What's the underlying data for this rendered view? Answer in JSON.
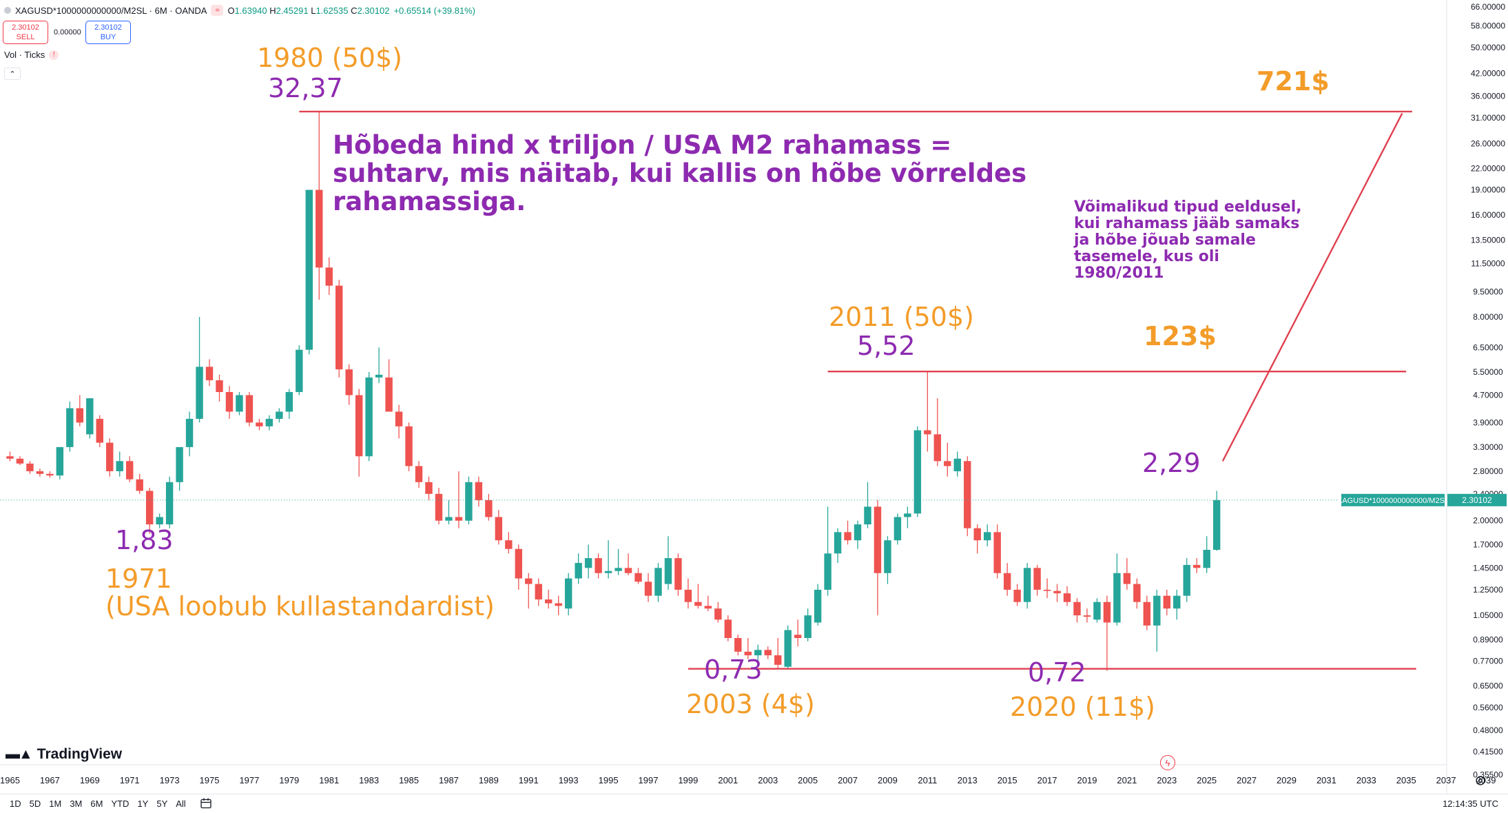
{
  "header": {
    "symbol_line": "XAGUSD*1000000000000/M2SL · 6M · OANDA",
    "o_label": "O",
    "o_value": "1.63940",
    "h_label": "H",
    "h_value": "2.45291",
    "l_label": "L",
    "l_value": "1.62535",
    "c_label": "C",
    "c_value": "2.30102",
    "change": "+0.65514 (+39.81%)"
  },
  "trade": {
    "sell_price": "2.30102",
    "sell_label": "SELL",
    "spread": "0.00000",
    "buy_price": "2.30102",
    "buy_label": "BUY"
  },
  "indicator": {
    "label": "Vol · Ticks"
  },
  "annotations": {
    "a1980_title": "1980 (50$)",
    "a1980_value": "32,37",
    "a1971_value": "1,83",
    "a1971_year": "1971",
    "a1971_note": "(USA loobub kullastandardist)",
    "a2011_title": "2011 (50$)",
    "a2011_value": "5,52",
    "a2003_value": "0,73",
    "a2003_title": "2003 (4$)",
    "a2020_value": "0,72",
    "a2020_title": "2020 (11$)",
    "current_value": "2,29",
    "target_high": "721$",
    "target_mid": "123$",
    "main_text_1": "Hõbeda hind x triljon / USA M2 rahamass =",
    "main_text_2": "suhtarv, mis näitab, kui kallis on hõbe võrreldes",
    "main_text_3": "rahamassiga.",
    "side_text_1": "Võimalikud tipud eeldusel,",
    "side_text_2": "kui rahamass jääb samaks",
    "side_text_3": "ja hõbe jõuab samale",
    "side_text_4": "tasemele, kus oli",
    "side_text_5": "1980/2011"
  },
  "price_label": {
    "symbol": "XAGUSD*1000000000000/M2SL",
    "value": "2.30102"
  },
  "logo": "TradingView",
  "bottom": {
    "ranges": [
      "1D",
      "5D",
      "1M",
      "3M",
      "6M",
      "YTD",
      "1Y",
      "5Y",
      "All"
    ],
    "clock": "12:14:35 UTC"
  },
  "colors": {
    "up": "#26a69a",
    "down": "#ef5350",
    "line": "#e0404f",
    "orange": "#f39c29",
    "purple": "#8d2ab0"
  },
  "chart_data": {
    "type": "candlestick",
    "symbol": "XAGUSD*1000000000000/M2SL",
    "interval": "6M",
    "exchange": "OANDA",
    "y_scale": "log",
    "ylim": [
      0.33,
      66
    ],
    "xlim": [
      1964.5,
      2040
    ],
    "y_ticks": [
      "66.00000",
      "58.00000",
      "50.00000",
      "42.00000",
      "36.00000",
      "31.00000",
      "26.00000",
      "22.00000",
      "19.00000",
      "16.00000",
      "13.50000",
      "11.50000",
      "9.50000",
      "8.00000",
      "6.50000",
      "5.50000",
      "4.70000",
      "3.90000",
      "3.30000",
      "2.80000",
      "2.40000",
      "2.00000",
      "1.70000",
      "1.45000",
      "1.25000",
      "1.05000",
      "0.89000",
      "0.77000",
      "0.65000",
      "0.56000",
      "0.48000",
      "0.41500",
      "0.35500"
    ],
    "x_ticks": [
      "1965",
      "1967",
      "1969",
      "1971",
      "1973",
      "1975",
      "1977",
      "1979",
      "1981",
      "1983",
      "1985",
      "1987",
      "1989",
      "1991",
      "1993",
      "1995",
      "1997",
      "1999",
      "2001",
      "2003",
      "2005",
      "2007",
      "2009",
      "2011",
      "2013",
      "2015",
      "2017",
      "2019",
      "2021",
      "2023",
      "2025",
      "2027",
      "2029",
      "2031",
      "2033",
      "2035",
      "2037",
      "2039"
    ],
    "candles": [
      {
        "t": 1965.0,
        "o": 3.1,
        "h": 3.2,
        "l": 3.0,
        "c": 3.05
      },
      {
        "t": 1965.5,
        "o": 3.05,
        "h": 3.1,
        "l": 2.92,
        "c": 2.95
      },
      {
        "t": 1966.0,
        "o": 2.95,
        "h": 3.0,
        "l": 2.75,
        "c": 2.8
      },
      {
        "t": 1966.5,
        "o": 2.8,
        "h": 2.85,
        "l": 2.7,
        "c": 2.75
      },
      {
        "t": 1967.0,
        "o": 2.75,
        "h": 2.8,
        "l": 2.68,
        "c": 2.72
      },
      {
        "t": 1967.5,
        "o": 2.72,
        "h": 3.3,
        "l": 2.65,
        "c": 3.3
      },
      {
        "t": 1968.0,
        "o": 3.3,
        "h": 4.5,
        "l": 3.2,
        "c": 4.3
      },
      {
        "t": 1968.5,
        "o": 4.3,
        "h": 4.7,
        "l": 3.8,
        "c": 3.9
      },
      {
        "t": 1969.0,
        "o": 3.6,
        "h": 4.6,
        "l": 3.5,
        "c": 4.6
      },
      {
        "t": 1969.5,
        "o": 4.0,
        "h": 4.1,
        "l": 3.3,
        "c": 3.4
      },
      {
        "t": 1970.0,
        "o": 3.4,
        "h": 3.5,
        "l": 2.7,
        "c": 2.8
      },
      {
        "t": 1970.5,
        "o": 2.8,
        "h": 3.2,
        "l": 2.7,
        "c": 3.0
      },
      {
        "t": 1971.0,
        "o": 3.0,
        "h": 3.1,
        "l": 2.6,
        "c": 2.65
      },
      {
        "t": 1971.5,
        "o": 2.65,
        "h": 2.75,
        "l": 2.4,
        "c": 2.45
      },
      {
        "t": 1972.0,
        "o": 2.45,
        "h": 2.5,
        "l": 1.83,
        "c": 1.95
      },
      {
        "t": 1972.5,
        "o": 1.95,
        "h": 2.1,
        "l": 1.9,
        "c": 2.05
      },
      {
        "t": 1973.0,
        "o": 1.95,
        "h": 2.7,
        "l": 1.9,
        "c": 2.6
      },
      {
        "t": 1973.5,
        "o": 2.6,
        "h": 3.3,
        "l": 2.45,
        "c": 3.3
      },
      {
        "t": 1974.0,
        "o": 3.3,
        "h": 4.2,
        "l": 3.1,
        "c": 4.0
      },
      {
        "t": 1974.5,
        "o": 4.0,
        "h": 8.0,
        "l": 3.9,
        "c": 5.7
      },
      {
        "t": 1975.0,
        "o": 5.7,
        "h": 6.0,
        "l": 5.0,
        "c": 5.2
      },
      {
        "t": 1975.5,
        "o": 5.2,
        "h": 5.4,
        "l": 4.5,
        "c": 4.8
      },
      {
        "t": 1976.0,
        "o": 4.8,
        "h": 5.0,
        "l": 4.0,
        "c": 4.2
      },
      {
        "t": 1976.5,
        "o": 4.2,
        "h": 4.8,
        "l": 4.1,
        "c": 4.7
      },
      {
        "t": 1977.0,
        "o": 4.7,
        "h": 4.8,
        "l": 3.8,
        "c": 3.9
      },
      {
        "t": 1977.5,
        "o": 3.9,
        "h": 4.0,
        "l": 3.7,
        "c": 3.8
      },
      {
        "t": 1978.0,
        "o": 3.8,
        "h": 4.1,
        "l": 3.7,
        "c": 4.0
      },
      {
        "t": 1978.5,
        "o": 4.0,
        "h": 4.3,
        "l": 3.9,
        "c": 4.2
      },
      {
        "t": 1979.0,
        "o": 4.2,
        "h": 4.9,
        "l": 4.0,
        "c": 4.8
      },
      {
        "t": 1979.5,
        "o": 4.8,
        "h": 6.6,
        "l": 4.7,
        "c": 6.4
      },
      {
        "t": 1980.0,
        "o": 6.4,
        "h": 19.0,
        "l": 6.2,
        "c": 19.0
      },
      {
        "t": 1980.5,
        "o": 19.0,
        "h": 32.37,
        "l": 9.0,
        "c": 11.2
      },
      {
        "t": 1981.0,
        "o": 11.2,
        "h": 12.0,
        "l": 9.3,
        "c": 9.9
      },
      {
        "t": 1981.5,
        "o": 9.9,
        "h": 10.3,
        "l": 5.3,
        "c": 5.6
      },
      {
        "t": 1982.0,
        "o": 5.6,
        "h": 5.8,
        "l": 4.4,
        "c": 4.7
      },
      {
        "t": 1982.5,
        "o": 4.7,
        "h": 4.9,
        "l": 2.7,
        "c": 3.1
      },
      {
        "t": 1983.0,
        "o": 3.1,
        "h": 5.5,
        "l": 3.0,
        "c": 5.3
      },
      {
        "t": 1983.5,
        "o": 5.3,
        "h": 6.5,
        "l": 5.1,
        "c": 5.4
      },
      {
        "t": 1984.0,
        "o": 5.3,
        "h": 6.0,
        "l": 4.5,
        "c": 4.2
      },
      {
        "t": 1984.5,
        "o": 4.2,
        "h": 4.4,
        "l": 3.5,
        "c": 3.8
      },
      {
        "t": 1985.0,
        "o": 3.8,
        "h": 3.9,
        "l": 2.8,
        "c": 2.9
      },
      {
        "t": 1985.5,
        "o": 2.9,
        "h": 3.0,
        "l": 2.5,
        "c": 2.6
      },
      {
        "t": 1986.0,
        "o": 2.6,
        "h": 2.7,
        "l": 2.3,
        "c": 2.4
      },
      {
        "t": 1986.5,
        "o": 2.4,
        "h": 2.5,
        "l": 1.95,
        "c": 2.0
      },
      {
        "t": 1987.0,
        "o": 2.0,
        "h": 2.3,
        "l": 1.95,
        "c": 2.05
      },
      {
        "t": 1987.5,
        "o": 2.05,
        "h": 2.8,
        "l": 1.9,
        "c": 2.0
      },
      {
        "t": 1988.0,
        "o": 2.0,
        "h": 2.7,
        "l": 1.95,
        "c": 2.6
      },
      {
        "t": 1988.5,
        "o": 2.6,
        "h": 2.7,
        "l": 2.2,
        "c": 2.3
      },
      {
        "t": 1989.0,
        "o": 2.3,
        "h": 2.4,
        "l": 2.0,
        "c": 2.05
      },
      {
        "t": 1989.5,
        "o": 2.05,
        "h": 2.15,
        "l": 1.7,
        "c": 1.75
      },
      {
        "t": 1990.0,
        "o": 1.75,
        "h": 1.85,
        "l": 1.6,
        "c": 1.65
      },
      {
        "t": 1990.5,
        "o": 1.65,
        "h": 1.7,
        "l": 1.25,
        "c": 1.35
      },
      {
        "t": 1991.0,
        "o": 1.35,
        "h": 1.4,
        "l": 1.1,
        "c": 1.3
      },
      {
        "t": 1991.5,
        "o": 1.3,
        "h": 1.35,
        "l": 1.12,
        "c": 1.17
      },
      {
        "t": 1992.0,
        "o": 1.17,
        "h": 1.25,
        "l": 1.1,
        "c": 1.14
      },
      {
        "t": 1992.5,
        "o": 1.14,
        "h": 1.2,
        "l": 1.05,
        "c": 1.12
      },
      {
        "t": 1993.0,
        "o": 1.1,
        "h": 1.4,
        "l": 1.05,
        "c": 1.35
      },
      {
        "t": 1993.5,
        "o": 1.35,
        "h": 1.6,
        "l": 1.3,
        "c": 1.5
      },
      {
        "t": 1994.0,
        "o": 1.45,
        "h": 1.7,
        "l": 1.35,
        "c": 1.55
      },
      {
        "t": 1994.5,
        "o": 1.55,
        "h": 1.6,
        "l": 1.35,
        "c": 1.4
      },
      {
        "t": 1995.0,
        "o": 1.4,
        "h": 1.75,
        "l": 1.35,
        "c": 1.42
      },
      {
        "t": 1995.5,
        "o": 1.42,
        "h": 1.65,
        "l": 1.38,
        "c": 1.45
      },
      {
        "t": 1996.0,
        "o": 1.45,
        "h": 1.6,
        "l": 1.38,
        "c": 1.4
      },
      {
        "t": 1996.5,
        "o": 1.4,
        "h": 1.45,
        "l": 1.3,
        "c": 1.32
      },
      {
        "t": 1997.0,
        "o": 1.32,
        "h": 1.4,
        "l": 1.15,
        "c": 1.2
      },
      {
        "t": 1997.5,
        "o": 1.2,
        "h": 1.5,
        "l": 1.15,
        "c": 1.45
      },
      {
        "t": 1998.0,
        "o": 1.3,
        "h": 1.8,
        "l": 1.25,
        "c": 1.55
      },
      {
        "t": 1998.5,
        "o": 1.55,
        "h": 1.6,
        "l": 1.2,
        "c": 1.25
      },
      {
        "t": 1999.0,
        "o": 1.25,
        "h": 1.35,
        "l": 1.1,
        "c": 1.15
      },
      {
        "t": 1999.5,
        "o": 1.15,
        "h": 1.3,
        "l": 1.1,
        "c": 1.12
      },
      {
        "t": 2000.0,
        "o": 1.12,
        "h": 1.2,
        "l": 1.08,
        "c": 1.1
      },
      {
        "t": 2000.5,
        "o": 1.1,
        "h": 1.15,
        "l": 1.0,
        "c": 1.02
      },
      {
        "t": 2001.0,
        "o": 1.02,
        "h": 1.05,
        "l": 0.88,
        "c": 0.9
      },
      {
        "t": 2001.5,
        "o": 0.9,
        "h": 0.92,
        "l": 0.8,
        "c": 0.82
      },
      {
        "t": 2002.0,
        "o": 0.82,
        "h": 0.9,
        "l": 0.78,
        "c": 0.8
      },
      {
        "t": 2002.5,
        "o": 0.8,
        "h": 0.86,
        "l": 0.77,
        "c": 0.83
      },
      {
        "t": 2003.0,
        "o": 0.83,
        "h": 0.85,
        "l": 0.78,
        "c": 0.8
      },
      {
        "t": 2003.5,
        "o": 0.8,
        "h": 0.9,
        "l": 0.73,
        "c": 0.75
      },
      {
        "t": 2004.0,
        "o": 0.74,
        "h": 0.98,
        "l": 0.73,
        "c": 0.95
      },
      {
        "t": 2004.5,
        "o": 0.92,
        "h": 1.02,
        "l": 0.85,
        "c": 0.9
      },
      {
        "t": 2005.0,
        "o": 0.9,
        "h": 1.1,
        "l": 0.88,
        "c": 1.05
      },
      {
        "t": 2005.5,
        "o": 1.0,
        "h": 1.3,
        "l": 0.98,
        "c": 1.25
      },
      {
        "t": 2006.0,
        "o": 1.25,
        "h": 2.2,
        "l": 1.2,
        "c": 1.6
      },
      {
        "t": 2006.5,
        "o": 1.6,
        "h": 1.9,
        "l": 1.5,
        "c": 1.85
      },
      {
        "t": 2007.0,
        "o": 1.85,
        "h": 2.0,
        "l": 1.7,
        "c": 1.75
      },
      {
        "t": 2007.5,
        "o": 1.75,
        "h": 2.0,
        "l": 1.65,
        "c": 1.95
      },
      {
        "t": 2008.0,
        "o": 1.95,
        "h": 2.6,
        "l": 1.9,
        "c": 2.2
      },
      {
        "t": 2008.5,
        "o": 2.2,
        "h": 2.3,
        "l": 1.05,
        "c": 1.4
      },
      {
        "t": 2009.0,
        "o": 1.4,
        "h": 1.8,
        "l": 1.3,
        "c": 1.75
      },
      {
        "t": 2009.5,
        "o": 1.75,
        "h": 2.1,
        "l": 1.7,
        "c": 2.05
      },
      {
        "t": 2010.0,
        "o": 2.05,
        "h": 2.2,
        "l": 1.9,
        "c": 2.1
      },
      {
        "t": 2010.5,
        "o": 2.1,
        "h": 3.8,
        "l": 2.05,
        "c": 3.7
      },
      {
        "t": 2011.0,
        "o": 3.7,
        "h": 5.52,
        "l": 3.2,
        "c": 3.6
      },
      {
        "t": 2011.5,
        "o": 3.6,
        "h": 4.6,
        "l": 2.9,
        "c": 3.0
      },
      {
        "t": 2012.0,
        "o": 3.0,
        "h": 3.4,
        "l": 2.7,
        "c": 2.9
      },
      {
        "t": 2012.5,
        "o": 2.8,
        "h": 3.2,
        "l": 2.7,
        "c": 3.05
      },
      {
        "t": 2013.0,
        "o": 3.0,
        "h": 3.1,
        "l": 1.8,
        "c": 1.9
      },
      {
        "t": 2013.5,
        "o": 1.9,
        "h": 1.95,
        "l": 1.6,
        "c": 1.75
      },
      {
        "t": 2014.0,
        "o": 1.75,
        "h": 1.95,
        "l": 1.68,
        "c": 1.85
      },
      {
        "t": 2014.5,
        "o": 1.85,
        "h": 1.95,
        "l": 1.35,
        "c": 1.4
      },
      {
        "t": 2015.0,
        "o": 1.4,
        "h": 1.5,
        "l": 1.2,
        "c": 1.25
      },
      {
        "t": 2015.5,
        "o": 1.25,
        "h": 1.3,
        "l": 1.12,
        "c": 1.15
      },
      {
        "t": 2016.0,
        "o": 1.15,
        "h": 1.5,
        "l": 1.1,
        "c": 1.45
      },
      {
        "t": 2016.5,
        "o": 1.45,
        "h": 1.48,
        "l": 1.2,
        "c": 1.25
      },
      {
        "t": 2017.0,
        "o": 1.25,
        "h": 1.35,
        "l": 1.18,
        "c": 1.24
      },
      {
        "t": 2017.5,
        "o": 1.24,
        "h": 1.3,
        "l": 1.15,
        "c": 1.22
      },
      {
        "t": 2018.0,
        "o": 1.22,
        "h": 1.28,
        "l": 1.12,
        "c": 1.15
      },
      {
        "t": 2018.5,
        "o": 1.15,
        "h": 1.18,
        "l": 1.0,
        "c": 1.05
      },
      {
        "t": 2019.0,
        "o": 1.05,
        "h": 1.1,
        "l": 1.0,
        "c": 1.04
      },
      {
        "t": 2019.5,
        "o": 1.02,
        "h": 1.18,
        "l": 1.0,
        "c": 1.15
      },
      {
        "t": 2020.0,
        "o": 1.15,
        "h": 1.2,
        "l": 0.72,
        "c": 1.0
      },
      {
        "t": 2020.5,
        "o": 1.0,
        "h": 1.6,
        "l": 0.98,
        "c": 1.4
      },
      {
        "t": 2021.0,
        "o": 1.4,
        "h": 1.55,
        "l": 1.25,
        "c": 1.3
      },
      {
        "t": 2021.5,
        "o": 1.3,
        "h": 1.35,
        "l": 1.1,
        "c": 1.15
      },
      {
        "t": 2022.0,
        "o": 1.15,
        "h": 1.2,
        "l": 0.95,
        "c": 0.98
      },
      {
        "t": 2022.5,
        "o": 0.98,
        "h": 1.25,
        "l": 0.82,
        "c": 1.2
      },
      {
        "t": 2023.0,
        "o": 1.2,
        "h": 1.25,
        "l": 1.05,
        "c": 1.1
      },
      {
        "t": 2023.5,
        "o": 1.1,
        "h": 1.25,
        "l": 1.02,
        "c": 1.2
      },
      {
        "t": 2024.0,
        "o": 1.2,
        "h": 1.55,
        "l": 1.15,
        "c": 1.48
      },
      {
        "t": 2024.5,
        "o": 1.48,
        "h": 1.55,
        "l": 1.4,
        "c": 1.45
      },
      {
        "t": 2025.0,
        "o": 1.45,
        "h": 1.8,
        "l": 1.4,
        "c": 1.64
      },
      {
        "t": 2025.5,
        "o": 1.64,
        "h": 2.45,
        "l": 1.63,
        "c": 2.3
      }
    ],
    "horizontal_lines": [
      {
        "y": 32.37,
        "x0": 1979.5,
        "x1": 2035.3
      },
      {
        "y": 5.52,
        "x0": 2006.0,
        "x1": 2035.0
      },
      {
        "y": 0.73,
        "x0": 1999.0,
        "x1": 2035.5
      }
    ],
    "trend_line": {
      "x0": 2025.8,
      "y0": 3.0,
      "x1": 2034.8,
      "y1": 32.0
    },
    "current_price": 2.30102
  }
}
